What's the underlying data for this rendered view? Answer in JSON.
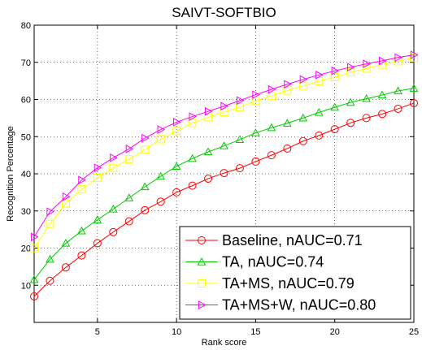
{
  "chart_data": {
    "type": "line",
    "title": "SAIVT-SOFTBIO",
    "xlabel": "Rank score",
    "ylabel": "Recognition Percentage",
    "xlim": [
      1,
      25
    ],
    "ylim": [
      0,
      80
    ],
    "xticks": [
      5,
      10,
      15,
      20,
      25
    ],
    "yticks": [
      10,
      20,
      30,
      40,
      50,
      60,
      70,
      80
    ],
    "grid": true,
    "legend_position": "bottom-right",
    "x": [
      1,
      2,
      3,
      4,
      5,
      6,
      7,
      8,
      9,
      10,
      11,
      12,
      13,
      14,
      15,
      16,
      17,
      18,
      19,
      20,
      21,
      22,
      23,
      24,
      25
    ],
    "series": [
      {
        "name": "Baseline,  nAUC=0.71",
        "color": "#ff0000",
        "marker": "circle",
        "values": [
          7,
          11.2,
          14.8,
          18,
          21.3,
          24.3,
          27.2,
          30.2,
          32.5,
          35,
          36.8,
          38.7,
          40.2,
          41.5,
          43.3,
          45,
          46.8,
          48.8,
          50.3,
          52,
          53.7,
          55,
          56.1,
          57.5,
          59
        ]
      },
      {
        "name": "TA,  nAUC=0.74",
        "color": "#00cc00",
        "marker": "triangle-up",
        "values": [
          11.5,
          17,
          21.3,
          24.6,
          27.6,
          30.5,
          33.5,
          36.5,
          39.3,
          42,
          44.1,
          45.9,
          47.5,
          49.2,
          51,
          52.4,
          53.6,
          55,
          56.5,
          57.9,
          59.2,
          60.2,
          61.2,
          62.3,
          63
        ]
      },
      {
        "name": "TA+MS,  nAUC=0.79",
        "color": "#ffff00",
        "marker": "square",
        "values": [
          20,
          26.5,
          32,
          35.8,
          38.9,
          41.6,
          43.9,
          46.5,
          49.3,
          51.5,
          53.7,
          55.2,
          56.6,
          57.9,
          59.6,
          61,
          62.4,
          63.7,
          64.9,
          66,
          67.3,
          68.3,
          69.4,
          70.3,
          71.2
        ]
      },
      {
        "name": "TA+MS+W,  nAUC=0.80",
        "color": "#ff00ff",
        "marker": "triangle-right",
        "values": [
          23,
          29.8,
          33.8,
          38.3,
          41.6,
          44.3,
          46.7,
          49.6,
          51.9,
          53.9,
          55.4,
          56.8,
          58.2,
          59.7,
          61.3,
          62.7,
          64.1,
          65.4,
          66.6,
          67.7,
          68.7,
          69.6,
          70.4,
          71.3,
          72
        ]
      }
    ]
  }
}
